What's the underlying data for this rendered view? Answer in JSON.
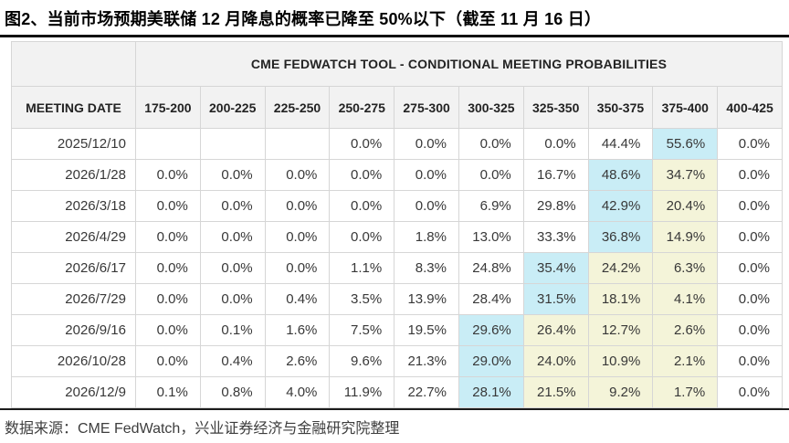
{
  "figure_title": "图2、当前市场预期美联储 12 月降息的概率已降至 50%以下（截至 11 月 16 日）",
  "source_note": "数据来源：CME FedWatch，兴业证券经济与金融研究院整理",
  "chart_data": {
    "type": "table",
    "title": "CME FEDWATCH TOOL - CONDITIONAL MEETING PROBABILITIES",
    "date_column_header": "MEETING DATE",
    "rate_range_columns": [
      "175-200",
      "200-225",
      "225-250",
      "250-275",
      "275-300",
      "300-325",
      "325-350",
      "350-375",
      "375-400",
      "400-425"
    ],
    "rows": [
      {
        "date": "2025/12/10",
        "values": [
          "",
          "",
          "",
          "0.0%",
          "0.0%",
          "0.0%",
          "0.0%",
          "44.4%",
          "55.6%",
          "0.0%"
        ],
        "highlights": [
          "",
          "",
          "",
          "",
          "",
          "",
          "",
          "",
          "blue",
          ""
        ]
      },
      {
        "date": "2026/1/28",
        "values": [
          "0.0%",
          "0.0%",
          "0.0%",
          "0.0%",
          "0.0%",
          "0.0%",
          "16.7%",
          "48.6%",
          "34.7%",
          "0.0%"
        ],
        "highlights": [
          "",
          "",
          "",
          "",
          "",
          "",
          "",
          "blue",
          "yellow",
          ""
        ]
      },
      {
        "date": "2026/3/18",
        "values": [
          "0.0%",
          "0.0%",
          "0.0%",
          "0.0%",
          "0.0%",
          "6.9%",
          "29.8%",
          "42.9%",
          "20.4%",
          "0.0%"
        ],
        "highlights": [
          "",
          "",
          "",
          "",
          "",
          "",
          "",
          "blue",
          "yellow",
          ""
        ]
      },
      {
        "date": "2026/4/29",
        "values": [
          "0.0%",
          "0.0%",
          "0.0%",
          "0.0%",
          "1.8%",
          "13.0%",
          "33.3%",
          "36.8%",
          "14.9%",
          "0.0%"
        ],
        "highlights": [
          "",
          "",
          "",
          "",
          "",
          "",
          "",
          "blue",
          "yellow",
          ""
        ]
      },
      {
        "date": "2026/6/17",
        "values": [
          "0.0%",
          "0.0%",
          "0.0%",
          "1.1%",
          "8.3%",
          "24.8%",
          "35.4%",
          "24.2%",
          "6.3%",
          "0.0%"
        ],
        "highlights": [
          "",
          "",
          "",
          "",
          "",
          "",
          "blue",
          "yellow",
          "yellow",
          ""
        ]
      },
      {
        "date": "2026/7/29",
        "values": [
          "0.0%",
          "0.0%",
          "0.4%",
          "3.5%",
          "13.9%",
          "28.4%",
          "31.5%",
          "18.1%",
          "4.1%",
          "0.0%"
        ],
        "highlights": [
          "",
          "",
          "",
          "",
          "",
          "",
          "blue",
          "yellow",
          "yellow",
          ""
        ]
      },
      {
        "date": "2026/9/16",
        "values": [
          "0.0%",
          "0.1%",
          "1.6%",
          "7.5%",
          "19.5%",
          "29.6%",
          "26.4%",
          "12.7%",
          "2.6%",
          "0.0%"
        ],
        "highlights": [
          "",
          "",
          "",
          "",
          "",
          "blue",
          "yellow",
          "yellow",
          "yellow",
          ""
        ]
      },
      {
        "date": "2026/10/28",
        "values": [
          "0.0%",
          "0.4%",
          "2.6%",
          "9.6%",
          "21.3%",
          "29.0%",
          "24.0%",
          "10.9%",
          "2.1%",
          "0.0%"
        ],
        "highlights": [
          "",
          "",
          "",
          "",
          "",
          "blue",
          "yellow",
          "yellow",
          "yellow",
          ""
        ]
      },
      {
        "date": "2026/12/9",
        "values": [
          "0.1%",
          "0.8%",
          "4.0%",
          "11.9%",
          "22.7%",
          "28.1%",
          "21.5%",
          "9.2%",
          "1.7%",
          "0.0%"
        ],
        "highlights": [
          "",
          "",
          "",
          "",
          "",
          "blue",
          "yellow",
          "yellow",
          "yellow",
          ""
        ]
      }
    ]
  },
  "colors": {
    "highlight_blue": "#c9edf6",
    "highlight_yellow": "#f4f4d9",
    "header_background": "#f2f2f2",
    "grid_line": "#d6d6d6",
    "rule": "#111111"
  }
}
